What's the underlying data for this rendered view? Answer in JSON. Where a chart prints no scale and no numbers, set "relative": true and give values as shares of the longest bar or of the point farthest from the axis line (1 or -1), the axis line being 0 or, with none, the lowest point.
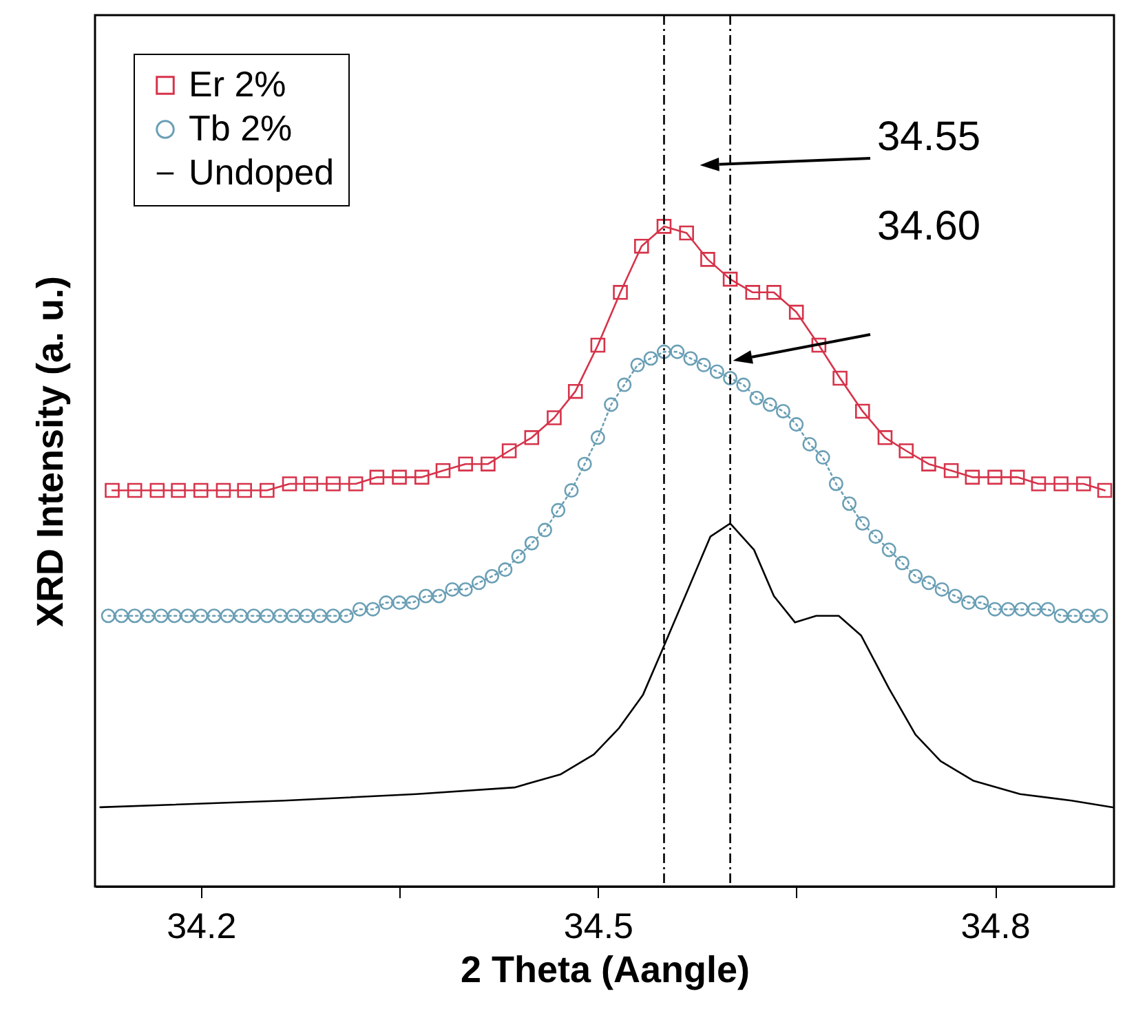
{
  "chart_data": {
    "type": "line",
    "relative": true,
    "xlabel": "2 Theta (Aangle)",
    "ylabel": "XRD Intensity (a. u.)",
    "xlim": [
      34.12,
      34.89
    ],
    "xticks": [
      34.2,
      {
        "value": 34.35,
        "label": null
      },
      34.5,
      {
        "value": 34.65,
        "label": null
      },
      34.8
    ],
    "legend": "top left",
    "grid": false,
    "ref_lines": [
      {
        "axis": "x",
        "value": 34.55,
        "color": "#000000",
        "line_style": "dashdot"
      },
      {
        "axis": "x",
        "value": 34.6,
        "color": "#000000",
        "line_style": "dashdot"
      }
    ],
    "annotations": [
      "34.55",
      "34.60"
    ],
    "series": [
      {
        "name": "Er 2%",
        "color": "#d6334a",
        "marker": "square",
        "line_style": "solid",
        "x": [
          34.133,
          34.15,
          34.167,
          34.183,
          34.2,
          34.217,
          34.233,
          34.25,
          34.267,
          34.283,
          34.3,
          34.317,
          34.333,
          34.35,
          34.367,
          34.383,
          34.4,
          34.417,
          34.433,
          34.45,
          34.467,
          34.483,
          34.5,
          34.517,
          34.533,
          34.55,
          34.567,
          34.583,
          34.6,
          34.617,
          34.633,
          34.65,
          34.667,
          34.683,
          34.7,
          34.717,
          34.733,
          34.75,
          34.767,
          34.783,
          34.8,
          34.817,
          34.833,
          34.85,
          34.867,
          34.883
        ],
        "values": [
          0.6,
          0.6,
          0.6,
          0.6,
          0.6,
          0.6,
          0.6,
          0.6,
          0.61,
          0.61,
          0.61,
          0.61,
          0.62,
          0.62,
          0.62,
          0.63,
          0.64,
          0.64,
          0.66,
          0.68,
          0.71,
          0.75,
          0.82,
          0.9,
          0.97,
          1.0,
          0.99,
          0.95,
          0.92,
          0.9,
          0.9,
          0.87,
          0.82,
          0.77,
          0.72,
          0.68,
          0.66,
          0.64,
          0.63,
          0.62,
          0.62,
          0.62,
          0.61,
          0.61,
          0.61,
          0.6
        ]
      },
      {
        "name": "Tb 2%",
        "color": "#6a9fb5",
        "marker": "circle",
        "line_style": "dotted",
        "x": [
          34.13,
          34.14,
          34.15,
          34.16,
          34.17,
          34.18,
          34.19,
          34.2,
          34.21,
          34.22,
          34.23,
          34.24,
          34.25,
          34.26,
          34.27,
          34.28,
          34.29,
          34.3,
          34.31,
          34.32,
          34.33,
          34.34,
          34.35,
          34.36,
          34.37,
          34.38,
          34.39,
          34.4,
          34.41,
          34.42,
          34.43,
          34.44,
          34.45,
          34.46,
          34.47,
          34.48,
          34.49,
          34.5,
          34.51,
          34.52,
          34.53,
          34.54,
          34.55,
          34.56,
          34.57,
          34.58,
          34.59,
          34.6,
          34.61,
          34.62,
          34.63,
          34.64,
          34.65,
          34.66,
          34.67,
          34.68,
          34.69,
          34.7,
          34.71,
          34.72,
          34.73,
          34.74,
          34.75,
          34.76,
          34.77,
          34.78,
          34.79,
          34.8,
          34.81,
          34.82,
          34.83,
          34.84,
          34.85,
          34.86,
          34.87,
          34.88
        ],
        "values": [
          0.41,
          0.41,
          0.41,
          0.41,
          0.41,
          0.41,
          0.41,
          0.41,
          0.41,
          0.41,
          0.41,
          0.41,
          0.41,
          0.41,
          0.41,
          0.41,
          0.41,
          0.41,
          0.41,
          0.42,
          0.42,
          0.43,
          0.43,
          0.43,
          0.44,
          0.44,
          0.45,
          0.45,
          0.46,
          0.47,
          0.48,
          0.5,
          0.52,
          0.54,
          0.57,
          0.6,
          0.64,
          0.68,
          0.73,
          0.76,
          0.79,
          0.8,
          0.81,
          0.81,
          0.8,
          0.79,
          0.78,
          0.77,
          0.76,
          0.74,
          0.73,
          0.72,
          0.7,
          0.67,
          0.65,
          0.61,
          0.58,
          0.55,
          0.53,
          0.51,
          0.49,
          0.47,
          0.46,
          0.45,
          0.44,
          0.43,
          0.43,
          0.42,
          0.42,
          0.42,
          0.42,
          0.42,
          0.41,
          0.41,
          0.41,
          0.41
        ]
      },
      {
        "name": "Undoped",
        "color": "#000000",
        "marker": "none",
        "line_style": "solid",
        "x": [
          34.124,
          34.263,
          34.363,
          34.437,
          34.472,
          34.497,
          34.516,
          34.534,
          34.549,
          34.566,
          34.585,
          34.6,
          34.618,
          34.633,
          34.649,
          34.665,
          34.682,
          34.699,
          34.72,
          34.74,
          34.759,
          34.784,
          34.819,
          34.858,
          34.889
        ],
        "values": [
          0.12,
          0.13,
          0.14,
          0.15,
          0.17,
          0.2,
          0.24,
          0.29,
          0.36,
          0.44,
          0.53,
          0.55,
          0.51,
          0.44,
          0.4,
          0.41,
          0.41,
          0.38,
          0.3,
          0.23,
          0.19,
          0.16,
          0.14,
          0.13,
          0.12
        ]
      }
    ]
  }
}
